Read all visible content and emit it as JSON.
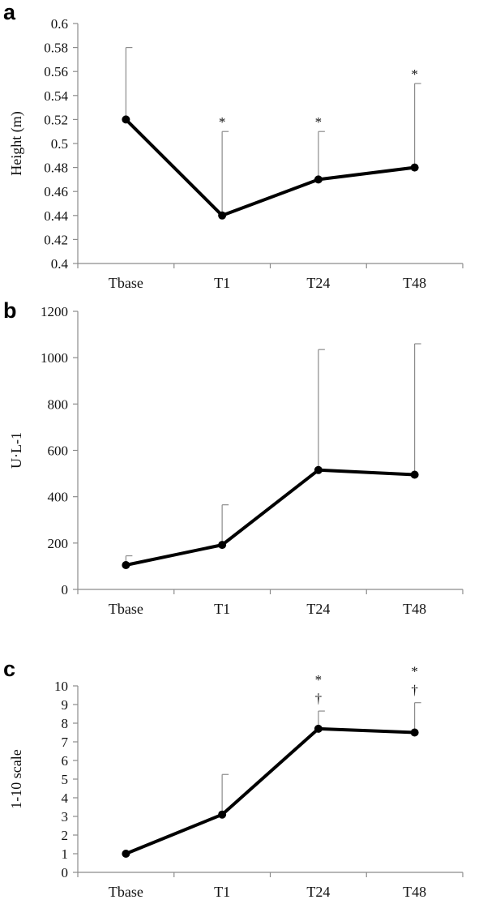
{
  "chart_data": [
    {
      "type": "line",
      "panel_label": "a",
      "categories": [
        "Tbase",
        "T1",
        "T24",
        "T48"
      ],
      "values": [
        0.52,
        0.44,
        0.47,
        0.48
      ],
      "error_upper": [
        0.58,
        0.51,
        0.51,
        0.55
      ],
      "ylabel": "Height (m)",
      "ylim": [
        0.4,
        0.6
      ],
      "yticks": [
        "0.4",
        "0.42",
        "0.44",
        "0.46",
        "0.48",
        "0.5",
        "0.52",
        "0.54",
        "0.56",
        "0.58",
        "0.6"
      ],
      "annotations": [
        "",
        "*",
        "*",
        "*"
      ],
      "annotations2": [
        "",
        "",
        "",
        ""
      ],
      "grid": false
    },
    {
      "type": "line",
      "panel_label": "b",
      "categories": [
        "Tbase",
        "T1",
        "T24",
        "T48"
      ],
      "values": [
        105,
        192,
        515,
        495
      ],
      "error_upper": [
        145,
        365,
        1035,
        1060
      ],
      "ylabel": "U·L-1",
      "ylim": [
        0,
        1200
      ],
      "yticks": [
        "0",
        "200",
        "400",
        "600",
        "800",
        "1000",
        "1200"
      ],
      "annotations": [
        "",
        "",
        "",
        ""
      ],
      "annotations2": [
        "",
        "",
        "",
        ""
      ],
      "grid": false
    },
    {
      "type": "line",
      "panel_label": "c",
      "categories": [
        "Tbase",
        "T1",
        "T24",
        "T48"
      ],
      "values": [
        1.0,
        3.1,
        7.7,
        7.5
      ],
      "error_upper": [
        1.0,
        5.25,
        8.65,
        9.1
      ],
      "ylabel": "1-10 scale",
      "ylim": [
        0,
        10
      ],
      "yticks": [
        "0",
        "1",
        "2",
        "3",
        "4",
        "5",
        "6",
        "7",
        "8",
        "9",
        "10"
      ],
      "annotations": [
        "",
        "",
        "*",
        "*"
      ],
      "annotations2": [
        "",
        "",
        "†",
        "†"
      ],
      "grid": false
    }
  ]
}
